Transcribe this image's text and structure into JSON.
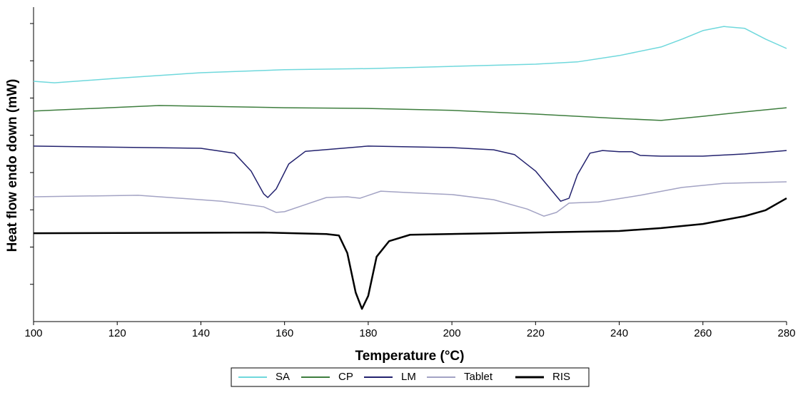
{
  "chart_data": {
    "type": "line",
    "x_label": "Temperature (°C)",
    "y_label": "Heat flow endo down (mW)",
    "xlim": [
      100,
      280
    ],
    "xticks": [
      100,
      120,
      140,
      160,
      180,
      200,
      220,
      240,
      260,
      280
    ],
    "ylim": [
      0,
      8.44
    ],
    "yticks": [
      1,
      2,
      3,
      4,
      5,
      6,
      7,
      8
    ],
    "y_tick_labels": false,
    "legend": "bottom",
    "series": [
      {
        "name": "SA",
        "color": "#6fd8dc",
        "width": 1.5,
        "x": [
          100,
          105,
          120,
          140,
          160,
          180,
          200,
          220,
          230,
          240,
          250,
          255,
          260,
          265,
          270,
          275,
          280
        ],
        "values": [
          6.45,
          6.41,
          6.53,
          6.68,
          6.76,
          6.79,
          6.85,
          6.91,
          6.97,
          7.14,
          7.37,
          7.58,
          7.81,
          7.92,
          7.87,
          7.58,
          7.33
        ]
      },
      {
        "name": "CP",
        "color": "#3d7d3d",
        "width": 1.5,
        "x": [
          100,
          130,
          160,
          180,
          200,
          220,
          240,
          250,
          260,
          270,
          280
        ],
        "values": [
          5.65,
          5.8,
          5.74,
          5.72,
          5.67,
          5.57,
          5.45,
          5.4,
          5.51,
          5.63,
          5.74
        ]
      },
      {
        "name": "LM",
        "color": "#23226e",
        "width": 1.5,
        "x": [
          100,
          140,
          148,
          152,
          155,
          156,
          158,
          161,
          165,
          180,
          200,
          210,
          215,
          220,
          224,
          226,
          228,
          230,
          233,
          236,
          240,
          243,
          245,
          250,
          260,
          270,
          280
        ],
        "values": [
          4.71,
          4.65,
          4.52,
          4.04,
          3.43,
          3.33,
          3.56,
          4.23,
          4.57,
          4.71,
          4.67,
          4.61,
          4.48,
          4.04,
          3.5,
          3.23,
          3.31,
          3.94,
          4.52,
          4.59,
          4.56,
          4.56,
          4.46,
          4.44,
          4.44,
          4.5,
          4.59
        ]
      },
      {
        "name": "Tablet",
        "color": "#a3a3c4",
        "width": 1.5,
        "x": [
          100,
          125,
          145,
          155,
          158,
          160,
          165,
          170,
          175,
          178,
          183,
          190,
          200,
          210,
          218,
          222,
          225,
          228,
          235,
          245,
          255,
          265,
          280
        ],
        "values": [
          3.35,
          3.39,
          3.23,
          3.08,
          2.93,
          2.95,
          3.14,
          3.33,
          3.35,
          3.31,
          3.5,
          3.46,
          3.41,
          3.27,
          3.02,
          2.83,
          2.93,
          3.18,
          3.21,
          3.39,
          3.6,
          3.71,
          3.75
        ]
      },
      {
        "name": "RIS",
        "color": "#000000",
        "width": 2.5,
        "x": [
          100,
          155,
          170,
          173,
          175,
          177,
          178.5,
          180,
          182,
          185,
          190,
          220,
          240,
          250,
          260,
          270,
          275,
          280
        ],
        "values": [
          2.37,
          2.39,
          2.35,
          2.31,
          1.84,
          0.78,
          0.34,
          0.69,
          1.74,
          2.16,
          2.33,
          2.39,
          2.43,
          2.51,
          2.62,
          2.83,
          2.99,
          3.31
        ]
      }
    ]
  }
}
